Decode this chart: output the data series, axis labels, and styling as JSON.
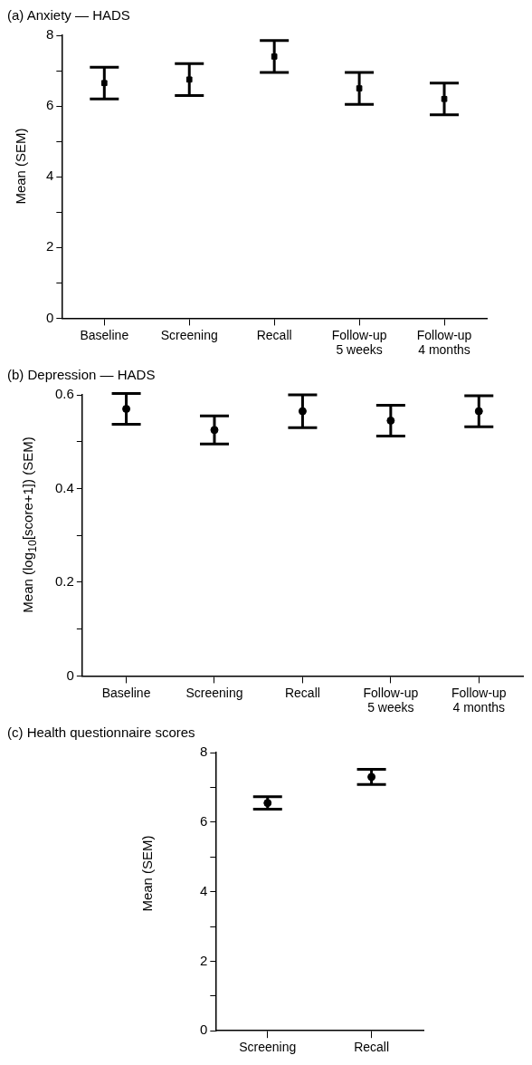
{
  "chart_data": [
    {
      "type": "scatter",
      "title": "(a) Anxiety — HADS",
      "ylabel": "Mean (SEM)",
      "categories": [
        "Baseline",
        "Screening",
        "Recall",
        "Follow-up\n5 weeks",
        "Follow-up\n4 months"
      ],
      "values": [
        6.65,
        6.75,
        7.4,
        6.5,
        6.2
      ],
      "errors": [
        0.45,
        0.45,
        0.45,
        0.45,
        0.45
      ],
      "color": "#000000",
      "marker": "square",
      "ylim": [
        0,
        8
      ],
      "yticks": [
        0,
        {
          "value": 1,
          "label": null
        },
        2,
        {
          "value": 3,
          "label": null
        },
        4,
        {
          "value": 5,
          "label": null
        },
        6,
        {
          "value": 7,
          "label": null
        },
        8
      ],
      "grid": false,
      "legend": false
    },
    {
      "type": "scatter",
      "title": "(b) Depression — HADS",
      "ylabel": "Mean (log$_{10}$[score+1]) (SEM)",
      "categories": [
        "Baseline",
        "Screening",
        "Recall",
        "Follow-up\n5 weeks",
        "Follow-up\n4 months"
      ],
      "values": [
        0.57,
        0.525,
        0.565,
        0.545,
        0.565
      ],
      "errors": [
        0.033,
        0.03,
        0.035,
        0.033,
        0.033
      ],
      "color": "#000000",
      "marker": "circle",
      "ylim": [
        0,
        0.6
      ],
      "yticks": [
        0,
        {
          "value": 0.1,
          "label": null
        },
        0.2,
        {
          "value": 0.3,
          "label": null
        },
        0.4,
        {
          "value": 0.5,
          "label": null
        },
        0.6
      ],
      "grid": false,
      "legend": false
    },
    {
      "type": "scatter",
      "title": "(c) Health questionnaire scores",
      "ylabel": "Mean (SEM)",
      "categories": [
        "Screening",
        "Recall"
      ],
      "values": [
        6.55,
        7.3
      ],
      "errors": [
        0.18,
        0.22
      ],
      "color": "#000000",
      "marker": "circle",
      "ylim": [
        0,
        8
      ],
      "yticks": [
        0,
        {
          "value": 1,
          "label": null
        },
        2,
        {
          "value": 3,
          "label": null
        },
        4,
        {
          "value": 5,
          "label": null
        },
        6,
        {
          "value": 7,
          "label": null
        },
        8
      ],
      "grid": false,
      "legend": false
    }
  ]
}
